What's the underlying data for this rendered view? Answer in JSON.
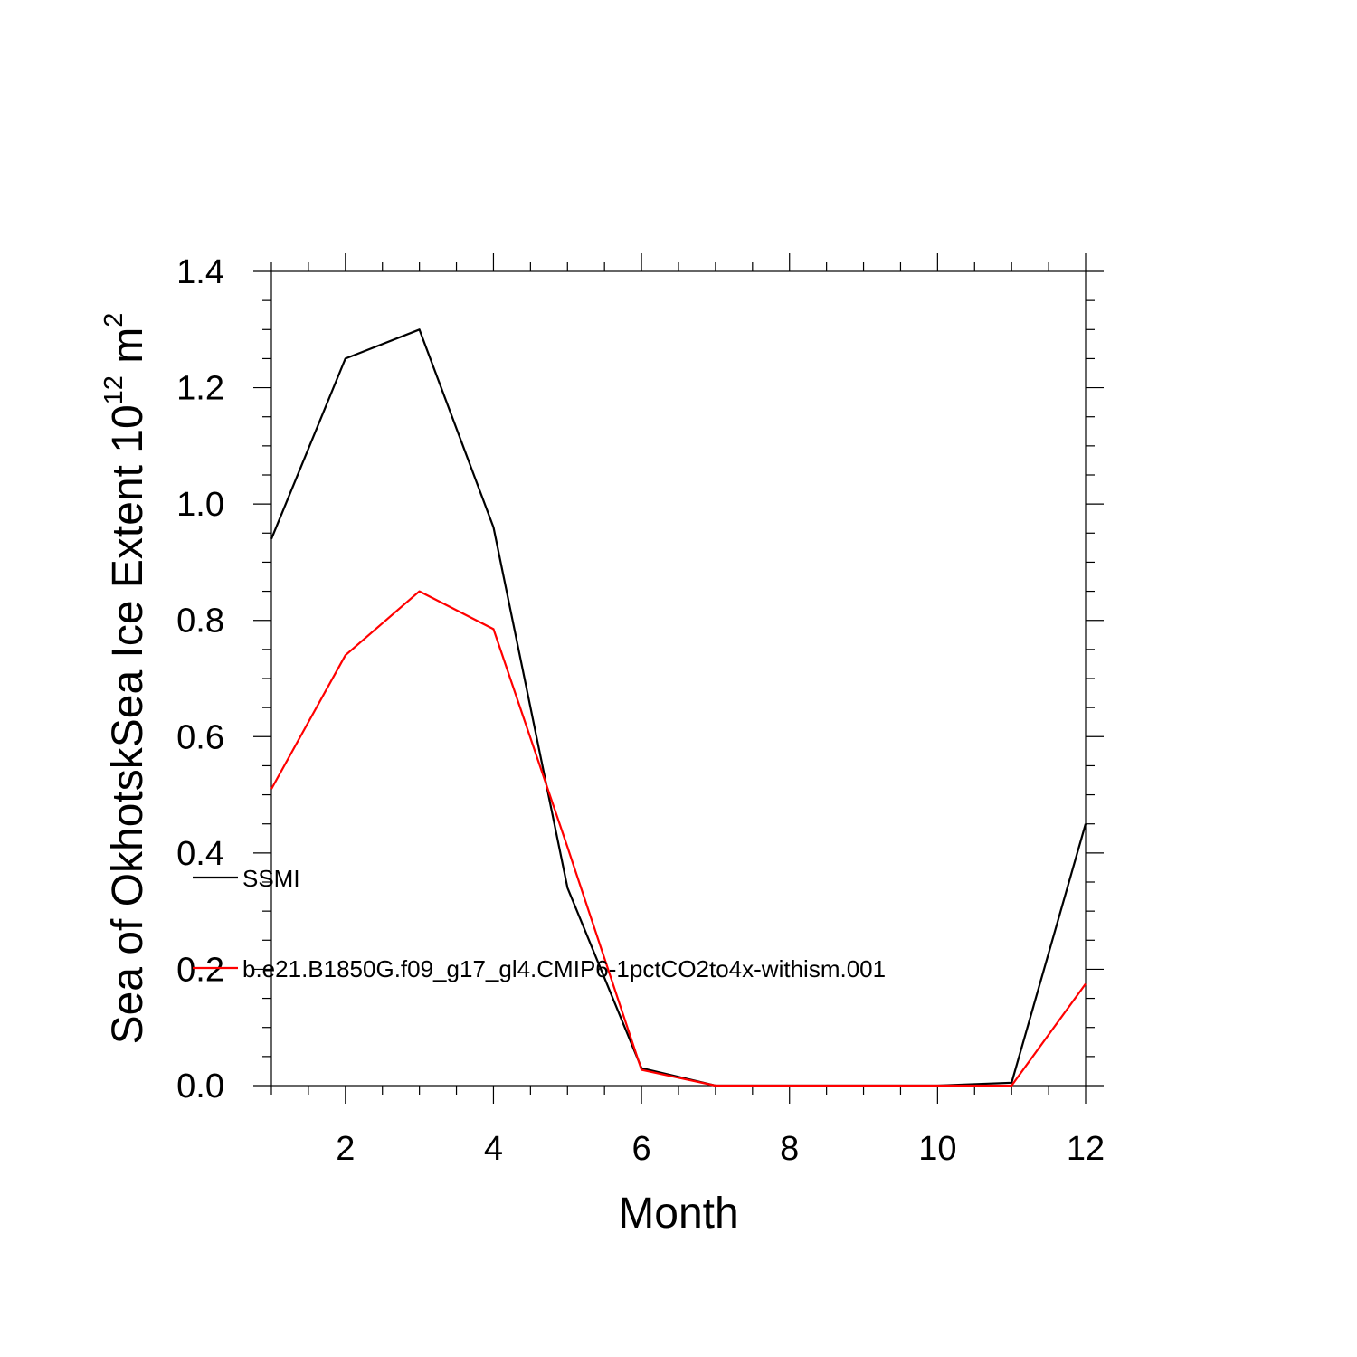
{
  "chart_data": {
    "type": "line",
    "title": "",
    "xlabel": "Month",
    "ylabel": {
      "main": "Sea of OkhotskSea Ice Extent 10",
      "superscript": "12",
      "unit": " m",
      "unit_superscript": "2"
    },
    "xlim": [
      1,
      12
    ],
    "ylim": [
      0,
      1.4
    ],
    "x_ticks": [
      2,
      4,
      6,
      8,
      10,
      12
    ],
    "x_tick_labels": [
      "2",
      "4",
      "6",
      "8",
      "10",
      "12"
    ],
    "y_ticks": [
      0,
      0.2,
      0.4,
      0.6,
      0.8,
      1.0,
      1.2,
      1.4
    ],
    "y_tick_labels": [
      "0.0",
      "0.2",
      "0.4",
      "0.6",
      "0.8",
      "1.0",
      "1.2",
      "1.4"
    ],
    "grid": false,
    "legend_position": "lower-left",
    "x": [
      1,
      2,
      3,
      4,
      5,
      6,
      7,
      8,
      9,
      10,
      11,
      12
    ],
    "series": [
      {
        "name": "SSMI",
        "color": "#000000",
        "values": [
          0.94,
          1.25,
          1.3,
          0.96,
          0.34,
          0.03,
          0.0,
          0.0,
          0.0,
          0.0,
          0.005,
          0.45
        ]
      },
      {
        "name": "b.e21.B1850G.f09_g17_gl4.CMIP6-1pctCO2to4x-withism.001",
        "color": "#ff0000",
        "values": [
          0.51,
          0.74,
          0.85,
          0.785,
          0.41,
          0.027,
          0.0,
          0.0,
          0.0,
          0.0,
          0.0,
          0.175
        ]
      }
    ]
  }
}
